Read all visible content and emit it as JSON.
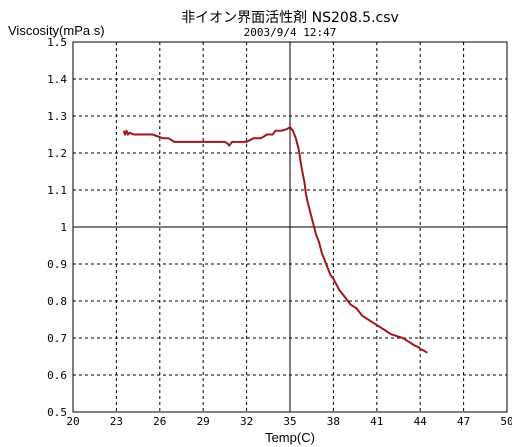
{
  "chart_data": {
    "type": "line",
    "title": "非イオン界面活性剤 NS208.5.csv",
    "subtitle": "2003/9/4 12:47",
    "xlabel": "Temp(C)",
    "ylabel": "Viscosity(mPa s)",
    "xlim": [
      20,
      50
    ],
    "ylim": [
      0.5,
      1.5
    ],
    "x_ticks": [
      20,
      23,
      26,
      29,
      32,
      35,
      38,
      41,
      44,
      47,
      50
    ],
    "x_tick_labels": [
      "20",
      "23",
      "26",
      "29",
      "32",
      "35",
      "38",
      "41",
      "44",
      "47",
      "50"
    ],
    "y_ticks": [
      0.5,
      0.6,
      0.7,
      0.8,
      0.9,
      1.0,
      1.1,
      1.2,
      1.3,
      1.4,
      1.5
    ],
    "y_tick_labels": [
      "0.5",
      "0.6",
      "0.7",
      "0.8",
      "0.9",
      "1",
      "1.1",
      "1.2",
      "1.3",
      "1.4",
      "1.5"
    ],
    "reference_lines": {
      "x": 35,
      "y": 1.0
    },
    "grid": true,
    "series": [
      {
        "color": "#a01818",
        "x": [
          23.5,
          23.6,
          23.7,
          23.8,
          23.9,
          24.2,
          24.8,
          25.5,
          26.2,
          26.6,
          27.0,
          28.0,
          29.0,
          30.0,
          30.5,
          30.7,
          30.8,
          31.0,
          31.5,
          32.0,
          32.5,
          33.0,
          33.4,
          33.8,
          34.0,
          34.4,
          34.8,
          35.0,
          35.2,
          35.4,
          35.6,
          35.8,
          36.0,
          36.1,
          36.2,
          36.4,
          36.6,
          36.8,
          37.0,
          37.2,
          37.4,
          37.6,
          37.8,
          38.0,
          38.4,
          38.8,
          39.2,
          39.6,
          40.0,
          40.4,
          40.8,
          41.2,
          41.6,
          42.0,
          42.4,
          42.8,
          43.2,
          43.6,
          43.9,
          44.0,
          44.3,
          44.5
        ],
        "y": [
          1.26,
          1.25,
          1.26,
          1.25,
          1.255,
          1.25,
          1.25,
          1.25,
          1.24,
          1.24,
          1.23,
          1.23,
          1.23,
          1.23,
          1.23,
          1.225,
          1.22,
          1.23,
          1.23,
          1.23,
          1.24,
          1.24,
          1.25,
          1.25,
          1.26,
          1.26,
          1.265,
          1.27,
          1.26,
          1.24,
          1.21,
          1.16,
          1.12,
          1.09,
          1.07,
          1.04,
          1.01,
          0.98,
          0.96,
          0.93,
          0.91,
          0.89,
          0.87,
          0.86,
          0.83,
          0.81,
          0.79,
          0.78,
          0.76,
          0.75,
          0.74,
          0.73,
          0.72,
          0.71,
          0.705,
          0.7,
          0.69,
          0.68,
          0.675,
          0.67,
          0.665,
          0.66
        ]
      }
    ]
  }
}
